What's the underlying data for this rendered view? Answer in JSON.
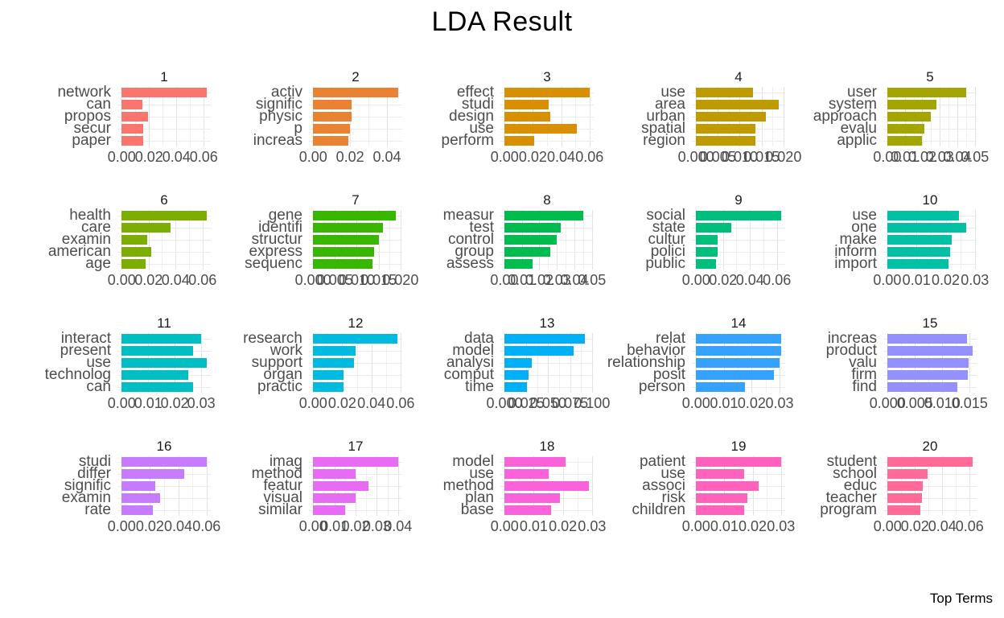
{
  "title": "LDA Result",
  "caption": "Top Terms",
  "chart_data": {
    "type": "bar",
    "orientation": "horizontal",
    "facet_layout": {
      "rows": 4,
      "cols": 5
    },
    "title": "LDA Result",
    "xlabel": "",
    "ylabel": "",
    "grid": "on",
    "value_name": "term probability (beta)",
    "facets": [
      {
        "topic": "1",
        "color": "#F8766D",
        "terms": [
          "network",
          "can",
          "propos",
          "secur",
          "paper"
        ],
        "values": [
          0.062,
          0.015,
          0.019,
          0.016,
          0.016
        ],
        "tick_labels": [
          "0.00",
          "0.02",
          "0.04",
          "0.06"
        ]
      },
      {
        "topic": "2",
        "color": "#EA8331",
        "terms": [
          "activ",
          "signific",
          "physic",
          "p",
          "increas"
        ],
        "values": [
          0.046,
          0.021,
          0.021,
          0.02,
          0.019
        ],
        "tick_labels": [
          "0.00",
          "0.02",
          "0.04"
        ]
      },
      {
        "topic": "3",
        "color": "#D89000",
        "terms": [
          "effect",
          "studi",
          "design",
          "use",
          "perform"
        ],
        "values": [
          0.06,
          0.031,
          0.032,
          0.051,
          0.021
        ],
        "tick_labels": [
          "0.00",
          "0.02",
          "0.04",
          "0.06"
        ]
      },
      {
        "topic": "4",
        "color": "#C09B00",
        "terms": [
          "use",
          "area",
          "urban",
          "spatial",
          "region"
        ],
        "values": [
          0.013,
          0.019,
          0.016,
          0.0135,
          0.0135
        ],
        "tick_labels": [
          "0.000",
          "0.005",
          "0.010",
          "0.015",
          "0.020"
        ]
      },
      {
        "topic": "5",
        "color": "#A3A500",
        "terms": [
          "user",
          "system",
          "approach",
          "evalu",
          "applic"
        ],
        "values": [
          0.045,
          0.028,
          0.025,
          0.021,
          0.02
        ],
        "tick_labels": [
          "0.00",
          "0.01",
          "0.02",
          "0.03",
          "0.04",
          "0.05"
        ]
      },
      {
        "topic": "6",
        "color": "#7CAE00",
        "terms": [
          "health",
          "care",
          "examin",
          "american",
          "age"
        ],
        "values": [
          0.063,
          0.036,
          0.019,
          0.022,
          0.018
        ],
        "tick_labels": [
          "0.00",
          "0.02",
          "0.04",
          "0.06"
        ]
      },
      {
        "topic": "7",
        "color": "#39B600",
        "terms": [
          "gene",
          "identifi",
          "structur",
          "express",
          "sequenc"
        ],
        "values": [
          0.019,
          0.016,
          0.015,
          0.014,
          0.0135
        ],
        "tick_labels": [
          "0.000",
          "0.005",
          "0.010",
          "0.015",
          "0.020"
        ]
      },
      {
        "topic": "8",
        "color": "#00BB4E",
        "terms": [
          "measur",
          "test",
          "control",
          "group",
          "assess"
        ],
        "values": [
          0.045,
          0.032,
          0.03,
          0.026,
          0.016
        ],
        "tick_labels": [
          "0.00",
          "0.01",
          "0.02",
          "0.03",
          "0.04",
          "0.05"
        ]
      },
      {
        "topic": "9",
        "color": "#00BF7D",
        "terms": [
          "social",
          "state",
          "cultur",
          "polici",
          "public"
        ],
        "values": [
          0.063,
          0.026,
          0.016,
          0.016,
          0.015
        ],
        "tick_labels": [
          "0.00",
          "0.02",
          "0.04",
          "0.06"
        ]
      },
      {
        "topic": "10",
        "color": "#00C1A3",
        "terms": [
          "use",
          "one",
          "make",
          "inform",
          "import"
        ],
        "values": [
          0.0245,
          0.027,
          0.022,
          0.0215,
          0.021
        ],
        "tick_labels": [
          "0.00",
          "0.01",
          "0.02",
          "0.03"
        ]
      },
      {
        "topic": "11",
        "color": "#00BFC4",
        "terms": [
          "interact",
          "present",
          "use",
          "technolog",
          "can"
        ],
        "values": [
          0.03,
          0.027,
          0.032,
          0.025,
          0.027
        ],
        "tick_labels": [
          "0.00",
          "0.01",
          "0.02",
          "0.03"
        ]
      },
      {
        "topic": "12",
        "color": "#00BAE0",
        "terms": [
          "research",
          "work",
          "support",
          "organ",
          "practic"
        ],
        "values": [
          0.058,
          0.029,
          0.028,
          0.021,
          0.021
        ],
        "tick_labels": [
          "0.00",
          "0.02",
          "0.04",
          "0.06"
        ]
      },
      {
        "topic": "13",
        "color": "#00B0F6",
        "terms": [
          "data",
          "model",
          "analysi",
          "comput",
          "time"
        ],
        "values": [
          0.092,
          0.079,
          0.031,
          0.028,
          0.026
        ],
        "tick_labels": [
          "0.000",
          "0.025",
          "0.050",
          "0.075",
          "0.100"
        ]
      },
      {
        "topic": "14",
        "color": "#35A2FF",
        "terms": [
          "relat",
          "behavior",
          "relationship",
          "posit",
          "person"
        ],
        "values": [
          0.0305,
          0.0305,
          0.03,
          0.028,
          0.0175
        ],
        "tick_labels": [
          "0.00",
          "0.01",
          "0.02",
          "0.03"
        ]
      },
      {
        "topic": "15",
        "color": "#9590FF",
        "terms": [
          "increas",
          "product",
          "valu",
          "firm",
          "find"
        ],
        "values": [
          0.0145,
          0.0155,
          0.0148,
          0.0147,
          0.0128
        ],
        "tick_labels": [
          "0.000",
          "0.005",
          "0.010",
          "0.015"
        ]
      },
      {
        "topic": "16",
        "color": "#C77CFF",
        "terms": [
          "studi",
          "differ",
          "signific",
          "examin",
          "rate"
        ],
        "values": [
          0.06,
          0.044,
          0.024,
          0.027,
          0.022
        ],
        "tick_labels": [
          "0.00",
          "0.02",
          "0.04",
          "0.06"
        ]
      },
      {
        "topic": "17",
        "color": "#E76BF3",
        "terms": [
          "imag",
          "method",
          "featur",
          "visual",
          "similar"
        ],
        "values": [
          0.04,
          0.02,
          0.026,
          0.02,
          0.015
        ],
        "tick_labels": [
          "0.00",
          "0.01",
          "0.02",
          "0.03",
          "0.04"
        ]
      },
      {
        "topic": "18",
        "color": "#FA62DB",
        "terms": [
          "model",
          "use",
          "method",
          "plan",
          "base"
        ],
        "values": [
          0.021,
          0.015,
          0.029,
          0.019,
          0.016
        ],
        "tick_labels": [
          "0.00",
          "0.01",
          "0.02",
          "0.03"
        ]
      },
      {
        "topic": "19",
        "color": "#FF62BC",
        "terms": [
          "patient",
          "use",
          "associ",
          "risk",
          "children"
        ],
        "values": [
          0.03,
          0.017,
          0.022,
          0.018,
          0.017
        ],
        "tick_labels": [
          "0.00",
          "0.01",
          "0.02",
          "0.03"
        ]
      },
      {
        "topic": "20",
        "color": "#FF6A98",
        "terms": [
          "student",
          "school",
          "educ",
          "teacher",
          "program"
        ],
        "values": [
          0.062,
          0.029,
          0.026,
          0.025,
          0.024
        ],
        "tick_labels": [
          "0.00",
          "0.02",
          "0.04",
          "0.06"
        ]
      }
    ]
  }
}
